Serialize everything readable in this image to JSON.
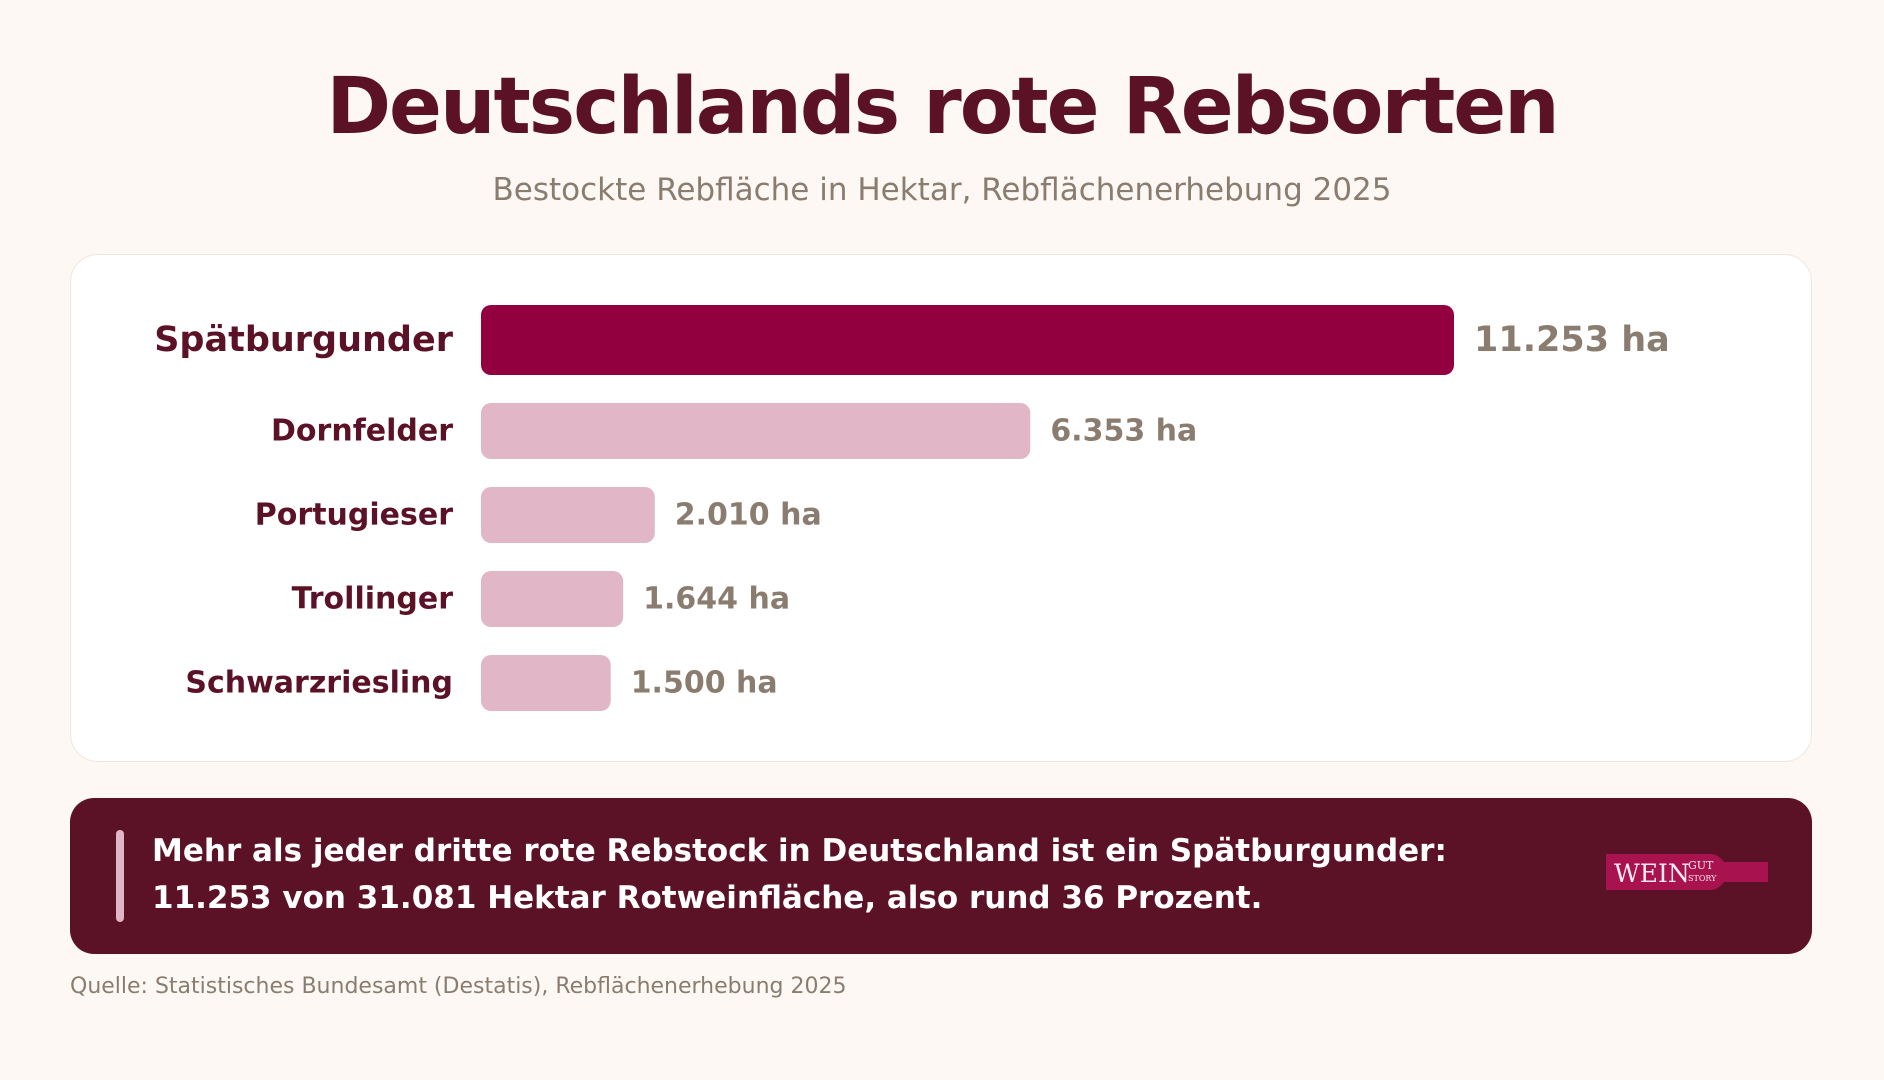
{
  "header": {
    "title": "Deutschlands rote Rebsorten",
    "subtitle": "Bestockte Rebfläche in Hektar, Rebflächenerhebung 2025"
  },
  "chart_data": {
    "type": "bar",
    "orientation": "horizontal",
    "title": "Deutschlands rote Rebsorten",
    "subtitle": "Bestockte Rebfläche in Hektar, Rebflächenerhebung 2025",
    "categories": [
      "Spätburgunder",
      "Dornfelder",
      "Portugieser",
      "Trollinger",
      "Schwarzriesling"
    ],
    "values": [
      11253,
      6353,
      2010,
      1644,
      1500
    ],
    "value_labels": [
      "11.253 ha",
      "6.353 ha",
      "2.010 ha",
      "1.644 ha",
      "1.500 ha"
    ],
    "unit": "ha",
    "highlight_index": 0,
    "xlim": [
      0,
      11253
    ],
    "grid": false,
    "legend": "none",
    "colors": {
      "highlight_bar": "#93003f",
      "other_bars": "#e1b7c7",
      "highlight_value": "#93003f",
      "other_values": "#8a7d70",
      "category_text": "#5c1226"
    }
  },
  "insight": {
    "text": "Mehr als jeder dritte rote Rebstock in Deutschland ist ein Spätburgunder: 11.253 von 31.081 Hektar Rotweinfläche, also rund 36 Prozent."
  },
  "logo": {
    "word": "WEIN",
    "small_top": "GUT",
    "small_bottom": "STORY",
    "color": "#a8124f"
  },
  "footer": {
    "source": "Quelle: Statistisches Bundesamt (Destatis), Rebflächenerhebung 2025"
  },
  "colors": {
    "background": "#fdf8f4",
    "title": "#5c1226",
    "muted": "#8a7d70",
    "insight_bg": "#5c1226",
    "insight_accent": "#e0b5c5"
  }
}
